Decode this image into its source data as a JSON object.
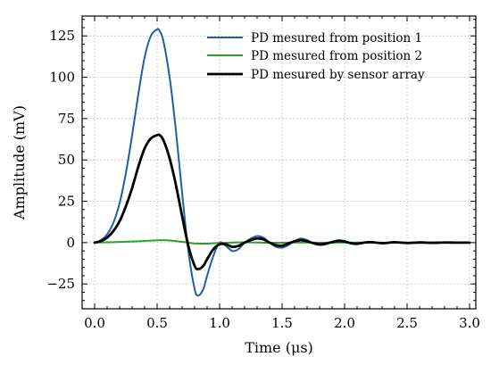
{
  "chart_data": {
    "type": "line",
    "xlabel": "Time (μs)",
    "ylabel": "Amplitude (mV)",
    "xlim": [
      -0.1,
      3.05
    ],
    "ylim": [
      -40,
      137
    ],
    "xticks": [
      0.0,
      0.5,
      1.0,
      1.5,
      2.0,
      2.5,
      3.0
    ],
    "xtick_labels": [
      "0.0",
      "0.5",
      "1.0",
      "1.5",
      "2.0",
      "2.5",
      "3.0"
    ],
    "yticks": [
      -25,
      0,
      25,
      50,
      75,
      100,
      125
    ],
    "ytick_labels": [
      "−25",
      "0",
      "25",
      "50",
      "75",
      "100",
      "125"
    ],
    "grid": true,
    "legend_position": "top-right",
    "series": [
      {
        "name": "PD mesured from position 1",
        "color": "#1f5ea8",
        "x": [
          0.0,
          0.05,
          0.1,
          0.15,
          0.2,
          0.25,
          0.3,
          0.35,
          0.4,
          0.45,
          0.5,
          0.52,
          0.55,
          0.6,
          0.65,
          0.7,
          0.75,
          0.8,
          0.83,
          0.87,
          0.9,
          0.95,
          1.0,
          1.05,
          1.1,
          1.15,
          1.2,
          1.25,
          1.3,
          1.35,
          1.4,
          1.45,
          1.5,
          1.55,
          1.6,
          1.65,
          1.7,
          1.75,
          1.8,
          1.85,
          1.9,
          1.95,
          2.0,
          2.05,
          2.1,
          2.2,
          2.3,
          2.4,
          2.5,
          2.6,
          2.7,
          2.8,
          2.9,
          3.0
        ],
        "y": [
          0,
          1.5,
          5,
          12,
          24,
          42,
          65,
          90,
          112,
          125,
          129,
          128,
          122,
          100,
          68,
          30,
          -5,
          -28,
          -32,
          -28,
          -20,
          -8,
          0,
          -2,
          -5,
          -4,
          0,
          2.5,
          4,
          3,
          0,
          -2.5,
          -3,
          -1.5,
          1,
          2.5,
          1.5,
          -0.5,
          -1.5,
          -1,
          0.5,
          1.5,
          1,
          -0.5,
          -1,
          0.5,
          -0.5,
          0.4,
          -0.3,
          0.2,
          -0.2,
          0.1,
          0,
          0
        ]
      },
      {
        "name": "PD mesured from position 2",
        "color": "#2ca02c",
        "x": [
          0.0,
          0.1,
          0.2,
          0.3,
          0.4,
          0.5,
          0.55,
          0.6,
          0.7,
          0.8,
          0.9,
          1.0,
          1.2,
          1.4,
          1.6,
          1.8,
          2.0,
          2.2,
          2.5,
          2.8,
          3.0
        ],
        "y": [
          0,
          0.2,
          0.4,
          0.7,
          1.0,
          1.4,
          1.5,
          1.3,
          0.5,
          -0.5,
          -0.6,
          -0.2,
          0.2,
          -0.1,
          0.1,
          0.0,
          0.05,
          0.0,
          0.0,
          0.0,
          0.0
        ]
      },
      {
        "name": "PD mesured by sensor array",
        "color": "#000000",
        "x": [
          0.0,
          0.05,
          0.1,
          0.15,
          0.2,
          0.25,
          0.3,
          0.35,
          0.4,
          0.45,
          0.5,
          0.52,
          0.55,
          0.6,
          0.65,
          0.7,
          0.75,
          0.8,
          0.83,
          0.87,
          0.9,
          0.95,
          1.0,
          1.05,
          1.1,
          1.15,
          1.2,
          1.25,
          1.3,
          1.35,
          1.4,
          1.45,
          1.5,
          1.55,
          1.6,
          1.65,
          1.7,
          1.75,
          1.8,
          1.85,
          1.9,
          1.95,
          2.0,
          2.05,
          2.1,
          2.2,
          2.3,
          2.4,
          2.5,
          2.6,
          2.7,
          2.8,
          2.9,
          3.0
        ],
        "y": [
          0,
          1,
          3,
          7,
          13,
          22,
          33,
          46,
          57,
          63,
          65,
          65,
          62,
          51,
          35,
          16,
          -2,
          -14,
          -16,
          -14,
          -10,
          -4,
          -1,
          -1,
          -2.5,
          -2,
          0,
          1.5,
          2.5,
          2,
          0,
          -1.5,
          -1.8,
          -0.5,
          0.8,
          1.5,
          0.8,
          -0.3,
          -1,
          -0.6,
          0.3,
          1,
          0.6,
          -0.3,
          -0.6,
          0.3,
          -0.3,
          0.2,
          -0.2,
          0.1,
          -0.1,
          0.05,
          0,
          0
        ]
      }
    ]
  }
}
